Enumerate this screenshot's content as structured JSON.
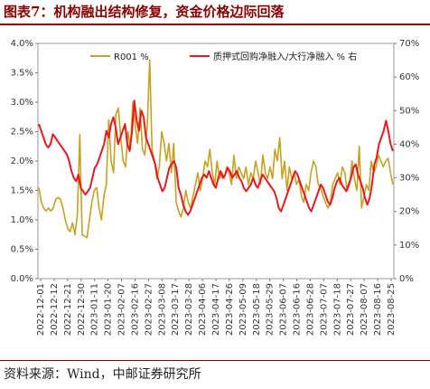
{
  "title": "图表7：机构融出结构修复，资金价格边际回落",
  "source": "资料来源：Wind，中邮证券研究所",
  "chart_data": {
    "type": "line",
    "title": "图表7：机构融出结构修复，资金价格边际回落",
    "xlabel": "",
    "ylabel": "",
    "y_left": {
      "min": 0,
      "max": 4.0,
      "ticks": [
        "0.0%",
        "0.5%",
        "1.0%",
        "1.5%",
        "2.0%",
        "2.5%",
        "3.0%",
        "3.5%",
        "4.0%"
      ]
    },
    "y_right": {
      "min": 0,
      "max": 70,
      "ticks": [
        "0%",
        "10%",
        "20%",
        "30%",
        "40%",
        "50%",
        "60%",
        "70%"
      ]
    },
    "x_ticks": [
      "2022-12-01",
      "2022-12-12",
      "2022-12-21",
      "2022-12-30",
      "2023-01-11",
      "2023-01-20",
      "2023-02-07",
      "2023-02-16",
      "2023-02-27",
      "2023-03-08",
      "2023-03-17",
      "2023-03-28",
      "2023-04-06",
      "2023-04-17",
      "2023-04-26",
      "2023-05-09",
      "2023-05-18",
      "2023-05-29",
      "2023-06-07",
      "2023-06-16",
      "2023-06-28",
      "2023-07-07",
      "2023-07-18",
      "2023-07-27",
      "2023-08-07",
      "2023-08-16",
      "2023-08-25"
    ],
    "legend_position": "top",
    "grid": false,
    "series": [
      {
        "name": "R001 %",
        "axis": "left",
        "color": "#c8a11e",
        "values": [
          1.55,
          1.3,
          1.2,
          1.15,
          1.2,
          1.15,
          1.2,
          1.35,
          1.38,
          1.35,
          1.2,
          1.0,
          0.85,
          0.8,
          0.95,
          0.75,
          1.1,
          2.45,
          0.75,
          0.72,
          0.7,
          1.0,
          1.3,
          1.5,
          1.55,
          1.2,
          1.0,
          1.4,
          1.6,
          2.7,
          2.0,
          1.8,
          2.8,
          2.9,
          2.4,
          2.0,
          1.9,
          2.5,
          2.2,
          3.0,
          2.6,
          2.3,
          2.9,
          2.2,
          2.1,
          2.6,
          3.72,
          2.2,
          2.0,
          1.7,
          1.9,
          2.5,
          2.3,
          2.0,
          2.3,
          1.8,
          2.3,
          1.3,
          1.15,
          1.05,
          1.2,
          1.5,
          1.3,
          1.2,
          1.4,
          1.6,
          1.8,
          1.5,
          1.7,
          2.0,
          1.9,
          2.2,
          1.8,
          1.6,
          2.0,
          1.7,
          1.8,
          1.7,
          1.9,
          1.8,
          1.6,
          2.1,
          1.7,
          1.9,
          1.8,
          1.7,
          1.9,
          1.6,
          1.8,
          1.7,
          2.0,
          1.8,
          1.6,
          2.1,
          1.8,
          1.7,
          1.9,
          1.7,
          2.2,
          2.0,
          2.4,
          1.7,
          2.0,
          1.5,
          1.9,
          1.7,
          1.8,
          1.6,
          1.7,
          1.4,
          1.3,
          1.6,
          1.5,
          1.8,
          2.0,
          1.9,
          1.6,
          1.55,
          1.4,
          1.3,
          1.2,
          1.3,
          1.6,
          1.7,
          1.8,
          1.6,
          1.9,
          1.8,
          1.5,
          1.6,
          2.0,
          1.7,
          1.5,
          2.25,
          1.2,
          1.4,
          1.6,
          1.5,
          2.0,
          1.8,
          1.9,
          2.1,
          2.0,
          1.9,
          2.0,
          2.05,
          1.8,
          1.6
        ]
      },
      {
        "name": "质押式回购净融入/大行净融入 % 右",
        "axis": "right",
        "color": "#e8181e",
        "values": [
          46,
          44,
          42,
          40,
          39,
          40,
          43,
          42,
          41,
          40,
          39,
          38,
          37,
          35,
          32,
          30,
          29,
          31,
          27,
          26,
          25,
          26,
          27,
          30,
          33,
          34,
          36,
          38,
          40,
          44,
          42,
          46,
          48,
          45,
          40,
          42,
          44,
          46,
          40,
          38,
          44,
          53,
          47,
          44,
          50,
          48,
          42,
          40,
          38,
          36,
          34,
          30,
          28,
          26,
          27,
          30,
          33,
          34,
          35,
          33,
          27,
          25,
          22,
          20,
          19,
          20,
          22,
          24,
          26,
          28,
          30,
          31,
          30,
          32,
          30,
          28,
          27,
          30,
          32,
          30,
          31,
          33,
          32,
          30,
          31,
          32,
          30,
          29,
          27,
          26,
          27,
          28,
          30,
          28,
          27,
          29,
          31,
          30,
          29,
          28,
          27,
          26,
          24,
          21,
          20,
          22,
          24,
          26,
          28,
          30,
          32,
          31,
          29,
          27,
          25,
          23,
          21,
          20,
          22,
          24,
          26,
          28,
          27,
          25,
          23,
          22,
          24,
          27,
          29,
          30,
          28,
          27,
          26,
          28,
          30,
          33,
          34,
          31,
          29,
          27,
          24,
          22,
          24,
          28,
          34,
          36,
          40,
          42,
          44,
          47,
          44,
          40,
          38
        ]
      }
    ]
  }
}
